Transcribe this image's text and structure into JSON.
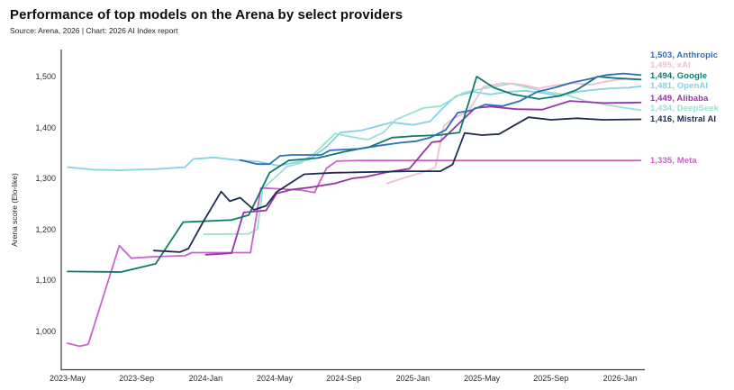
{
  "header": {
    "title": "Performance of top models on the Arena by select providers",
    "subtitle": "Source: Arena, 2026 | Chart: 2026 AI Index report"
  },
  "chart_data": {
    "type": "line",
    "title": "Performance of top models on the Arena by select providers",
    "xlabel": "",
    "ylabel": "Arena score (Elo-like)",
    "x_unit": "months since 2023-May",
    "ylim": [
      950,
      1530
    ],
    "grid": false,
    "legend_position": "right-end-labels",
    "x_ticks": {
      "months": [
        0,
        4,
        8,
        12,
        16,
        20,
        24,
        28,
        32
      ],
      "labels": [
        "2023-May",
        "2023-Sep",
        "2024-Jan",
        "2024-May",
        "2024-Sep",
        "2025-Jan",
        "2025-May",
        "2025-Sep",
        "2026-Jan"
      ]
    },
    "y_ticks": {
      "values": [
        1000,
        1100,
        1200,
        1300,
        1400,
        1500
      ],
      "labels": [
        "1,000",
        "1,100",
        "1,200",
        "1,300",
        "1,400",
        "1,500"
      ]
    },
    "series": [
      {
        "name": "Anthropic",
        "color": "#2e6fb4",
        "end_value": 1503,
        "end_label": "1,503, Anthropic",
        "points": [
          [
            10,
            1336
          ],
          [
            11,
            1328
          ],
          [
            11.7,
            1328
          ],
          [
            12.3,
            1344
          ],
          [
            13,
            1346
          ],
          [
            14.7,
            1346
          ],
          [
            15.2,
            1355
          ],
          [
            16.9,
            1358
          ],
          [
            18,
            1364
          ],
          [
            19.3,
            1370
          ],
          [
            20.2,
            1373
          ],
          [
            21,
            1380
          ],
          [
            21.9,
            1395
          ],
          [
            22.6,
            1429
          ],
          [
            23.3,
            1433
          ],
          [
            24.2,
            1445
          ],
          [
            25.2,
            1442
          ],
          [
            26.2,
            1452
          ],
          [
            27.2,
            1470
          ],
          [
            28.2,
            1478
          ],
          [
            29.2,
            1488
          ],
          [
            30.2,
            1495
          ],
          [
            31.2,
            1503
          ],
          [
            32.2,
            1506
          ],
          [
            33.2,
            1503
          ]
        ]
      },
      {
        "name": "xAI",
        "color": "#f3bcd6",
        "end_value": 1495,
        "end_label": "1,495, xAI",
        "points": [
          [
            18.5,
            1290
          ],
          [
            19.5,
            1301
          ],
          [
            20.5,
            1311
          ],
          [
            21.3,
            1321
          ],
          [
            21.8,
            1403
          ],
          [
            22.3,
            1417
          ],
          [
            23.2,
            1431
          ],
          [
            24.1,
            1480
          ],
          [
            25.2,
            1487
          ],
          [
            26.2,
            1485
          ],
          [
            27.3,
            1477
          ],
          [
            28.3,
            1483
          ],
          [
            29.3,
            1487
          ],
          [
            30.3,
            1484
          ],
          [
            31.3,
            1491
          ],
          [
            32.3,
            1496
          ],
          [
            33.2,
            1495
          ]
        ]
      },
      {
        "name": "Google",
        "color": "#0d7a6e",
        "end_value": 1494,
        "end_label": "1,494, Google",
        "points": [
          [
            0,
            1117
          ],
          [
            3.1,
            1116
          ],
          [
            5.1,
            1132
          ],
          [
            6.7,
            1214
          ],
          [
            9.5,
            1218
          ],
          [
            10.5,
            1228
          ],
          [
            11.7,
            1311
          ],
          [
            12.8,
            1335
          ],
          [
            14.5,
            1340
          ],
          [
            16,
            1352
          ],
          [
            17.5,
            1362
          ],
          [
            18.8,
            1380
          ],
          [
            20,
            1383
          ],
          [
            21.5,
            1385
          ],
          [
            22.7,
            1390
          ],
          [
            23.7,
            1500
          ],
          [
            24.7,
            1478
          ],
          [
            25.8,
            1465
          ],
          [
            27.3,
            1456
          ],
          [
            28.5,
            1462
          ],
          [
            29.5,
            1474
          ],
          [
            30.7,
            1500
          ],
          [
            31.7,
            1497
          ],
          [
            33.2,
            1494
          ]
        ]
      },
      {
        "name": "OpenAI",
        "color": "#85d1e7",
        "end_value": 1481,
        "end_label": "1,481, OpenAI",
        "points": [
          [
            0,
            1322
          ],
          [
            1.5,
            1317
          ],
          [
            3,
            1316
          ],
          [
            5,
            1318
          ],
          [
            6.8,
            1322
          ],
          [
            7.3,
            1338
          ],
          [
            8.5,
            1341
          ],
          [
            9.8,
            1336
          ],
          [
            11,
            1333
          ],
          [
            12.2,
            1325
          ],
          [
            13,
            1330
          ],
          [
            14,
            1337
          ],
          [
            15,
            1362
          ],
          [
            15.8,
            1390
          ],
          [
            17,
            1394
          ],
          [
            18.8,
            1410
          ],
          [
            20,
            1405
          ],
          [
            21,
            1412
          ],
          [
            21.8,
            1440
          ],
          [
            22.5,
            1462
          ],
          [
            23.5,
            1470
          ],
          [
            24.5,
            1465
          ],
          [
            25.5,
            1470
          ],
          [
            26.5,
            1472
          ],
          [
            27.5,
            1468
          ],
          [
            28.5,
            1462
          ],
          [
            29.5,
            1470
          ],
          [
            30.5,
            1474
          ],
          [
            31.5,
            1477
          ],
          [
            32.5,
            1478
          ],
          [
            33.2,
            1481
          ]
        ]
      },
      {
        "name": "Alibaba",
        "color": "#9734a9",
        "end_value": 1449,
        "end_label": "1,449, Alibaba",
        "points": [
          [
            8,
            1150
          ],
          [
            9.5,
            1153
          ],
          [
            10.2,
            1233
          ],
          [
            11.5,
            1237
          ],
          [
            12.1,
            1270
          ],
          [
            13,
            1278
          ],
          [
            14,
            1282
          ],
          [
            15.5,
            1290
          ],
          [
            16.5,
            1300
          ],
          [
            17.3,
            1303
          ],
          [
            18.5,
            1312
          ],
          [
            19.8,
            1319
          ],
          [
            21.1,
            1371
          ],
          [
            21.6,
            1373
          ],
          [
            23.6,
            1438
          ],
          [
            24.5,
            1441
          ],
          [
            26,
            1436
          ],
          [
            27.5,
            1435
          ],
          [
            29.1,
            1452
          ],
          [
            31,
            1448
          ],
          [
            33.2,
            1449
          ]
        ]
      },
      {
        "name": "DeepSeek",
        "color": "#9be0d2",
        "end_value": 1434,
        "end_label": "1,434, DeepSeek",
        "points": [
          [
            7.9,
            1190
          ],
          [
            10.5,
            1191
          ],
          [
            11,
            1200
          ],
          [
            11.3,
            1279
          ],
          [
            12.7,
            1323
          ],
          [
            13.5,
            1330
          ],
          [
            14.3,
            1349
          ],
          [
            15.5,
            1388
          ],
          [
            16.5,
            1381
          ],
          [
            17.4,
            1376
          ],
          [
            18.3,
            1390
          ],
          [
            19,
            1415
          ],
          [
            20.6,
            1438
          ],
          [
            21.6,
            1442
          ],
          [
            22.9,
            1468
          ],
          [
            24,
            1476
          ],
          [
            25.7,
            1486
          ],
          [
            26.7,
            1478
          ],
          [
            27.7,
            1470
          ],
          [
            28.9,
            1464
          ],
          [
            30,
            1452
          ],
          [
            31,
            1446
          ],
          [
            32,
            1440
          ],
          [
            33.2,
            1434
          ]
        ]
      },
      {
        "name": "Mistral AI",
        "color": "#1e2c4e",
        "end_value": 1416,
        "end_label": "1,416, Mistral AI",
        "points": [
          [
            5,
            1158
          ],
          [
            6.5,
            1155
          ],
          [
            7,
            1162
          ],
          [
            7.9,
            1217
          ],
          [
            8.9,
            1274
          ],
          [
            9.4,
            1255
          ],
          [
            10,
            1262
          ],
          [
            10.8,
            1238
          ],
          [
            11.5,
            1246
          ],
          [
            12.1,
            1273
          ],
          [
            13.7,
            1308
          ],
          [
            15.4,
            1311
          ],
          [
            17,
            1312
          ],
          [
            19.8,
            1314
          ],
          [
            21.6,
            1314
          ],
          [
            22.3,
            1327
          ],
          [
            23,
            1389
          ],
          [
            24,
            1385
          ],
          [
            25,
            1387
          ],
          [
            26.7,
            1420
          ],
          [
            28,
            1415
          ],
          [
            29.5,
            1418
          ],
          [
            31,
            1415
          ],
          [
            33.2,
            1416
          ]
        ]
      },
      {
        "name": "Meta",
        "color": "#c765c9",
        "end_value": 1335,
        "end_label": "1,335, Meta",
        "points": [
          [
            0,
            976
          ],
          [
            0.7,
            970
          ],
          [
            1.2,
            974
          ],
          [
            3,
            1168
          ],
          [
            3.7,
            1143
          ],
          [
            5,
            1146
          ],
          [
            6.8,
            1148
          ],
          [
            7.2,
            1154
          ],
          [
            10.6,
            1154
          ],
          [
            11.2,
            1281
          ],
          [
            12.5,
            1279
          ],
          [
            13.5,
            1277
          ],
          [
            14.3,
            1272
          ],
          [
            15,
            1320
          ],
          [
            15.6,
            1334
          ],
          [
            17,
            1335
          ],
          [
            33.2,
            1335
          ]
        ]
      }
    ]
  }
}
